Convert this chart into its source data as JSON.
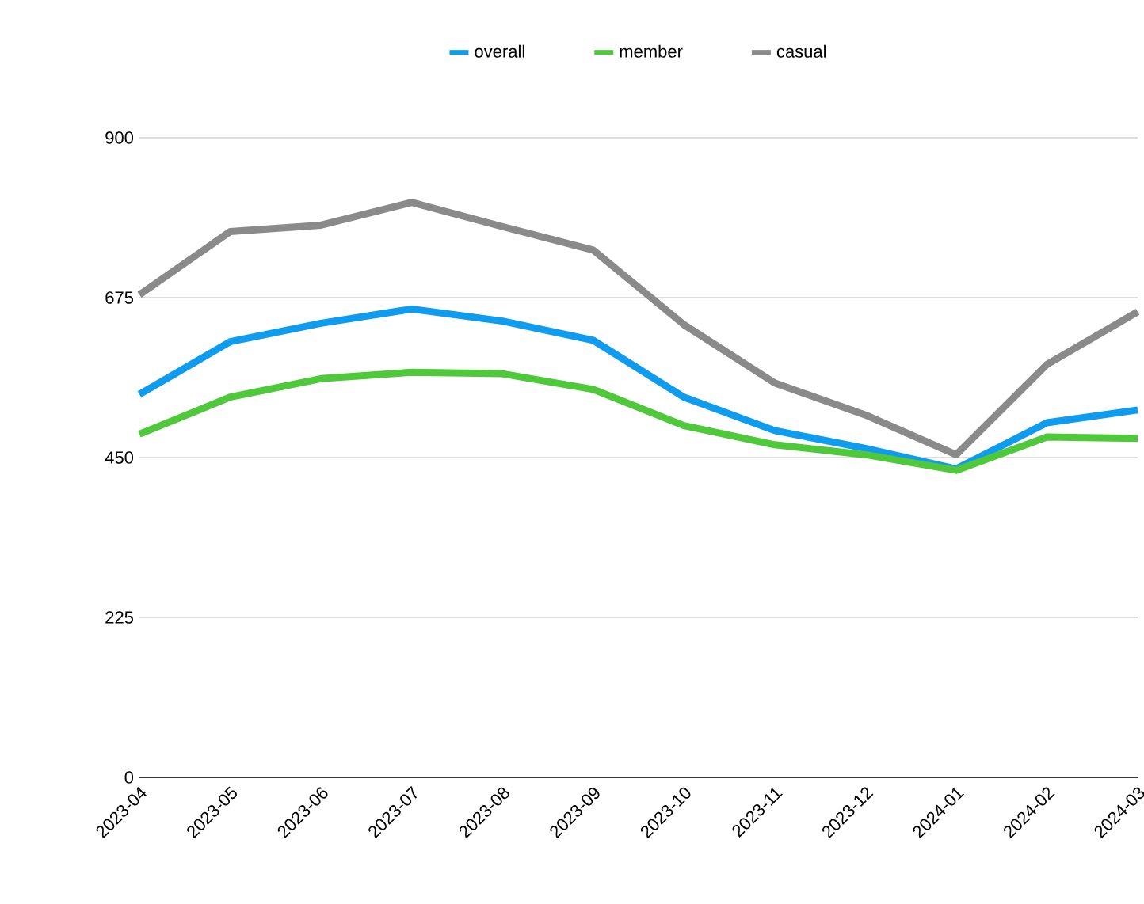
{
  "chart_data": {
    "type": "line",
    "categories": [
      "2023-04",
      "2023-05",
      "2023-06",
      "2023-07",
      "2023-08",
      "2023-09",
      "2023-10",
      "2023-11",
      "2023-12",
      "2024-01",
      "2024-02",
      "2024-03"
    ],
    "series": [
      {
        "name": "overall",
        "color": "#0f9cee",
        "values": [
          539,
          613,
          639,
          659,
          642,
          615,
          535,
          488,
          463,
          434,
          499,
          517
        ]
      },
      {
        "name": "member",
        "color": "#4fc83b",
        "values": [
          483,
          535,
          561,
          570,
          568,
          546,
          495,
          468,
          454,
          432,
          479,
          477
        ]
      },
      {
        "name": "casual",
        "color": "#8a8a8a",
        "values": [
          679,
          768,
          777,
          809,
          775,
          742,
          637,
          555,
          510,
          454,
          581,
          655
        ]
      }
    ],
    "ylim": [
      0,
      900
    ],
    "yticks": [
      0,
      225,
      450,
      675,
      900
    ],
    "grid": "y",
    "legend": "top",
    "marker": "none",
    "line_style": "solid"
  }
}
